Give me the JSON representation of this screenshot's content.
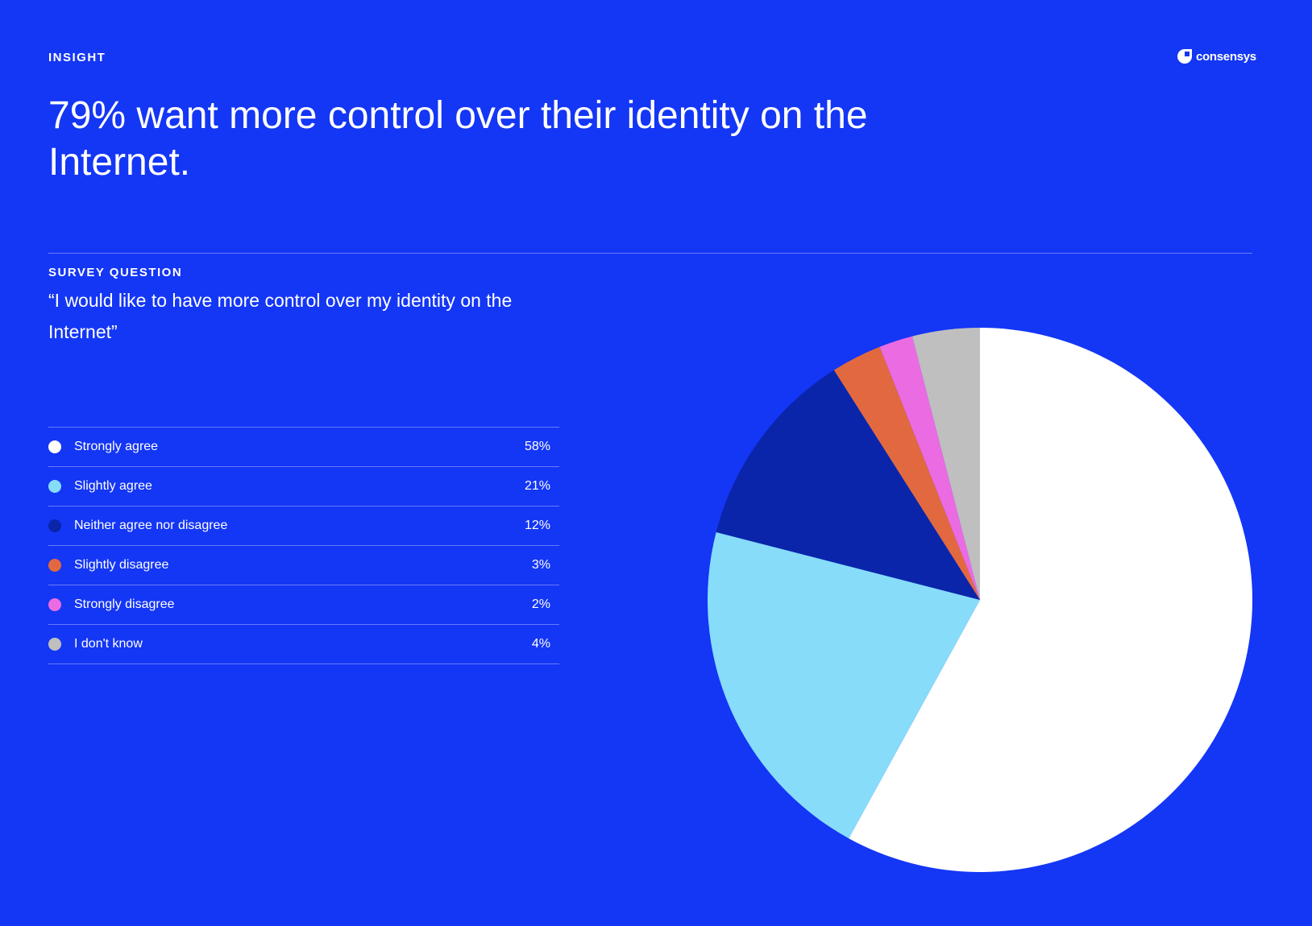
{
  "header": {
    "eyebrow": "INSIGHT",
    "logo_text": "consensys",
    "title": "79% want more control over their identity on the Internet."
  },
  "survey": {
    "label": "SURVEY QUESTION",
    "question": "“I would like to have more control over my identity on the Internet”"
  },
  "chart_data": {
    "type": "pie",
    "categories": [
      "Strongly agree",
      "Slightly agree",
      "Neither agree nor disagree",
      "Slightly disagree",
      "Strongly disagree",
      "I don't know"
    ],
    "values": [
      58,
      21,
      12,
      3,
      2,
      4
    ],
    "labels": [
      "58%",
      "21%",
      "12%",
      "3%",
      "2%",
      "4%"
    ],
    "colors": [
      "#FFFFFF",
      "#86DCF9",
      "#0A25A9",
      "#E2693F",
      "#EB6BE2",
      "#BFBFBF"
    ],
    "start": "top, clockwise",
    "legend_placement": "left"
  }
}
